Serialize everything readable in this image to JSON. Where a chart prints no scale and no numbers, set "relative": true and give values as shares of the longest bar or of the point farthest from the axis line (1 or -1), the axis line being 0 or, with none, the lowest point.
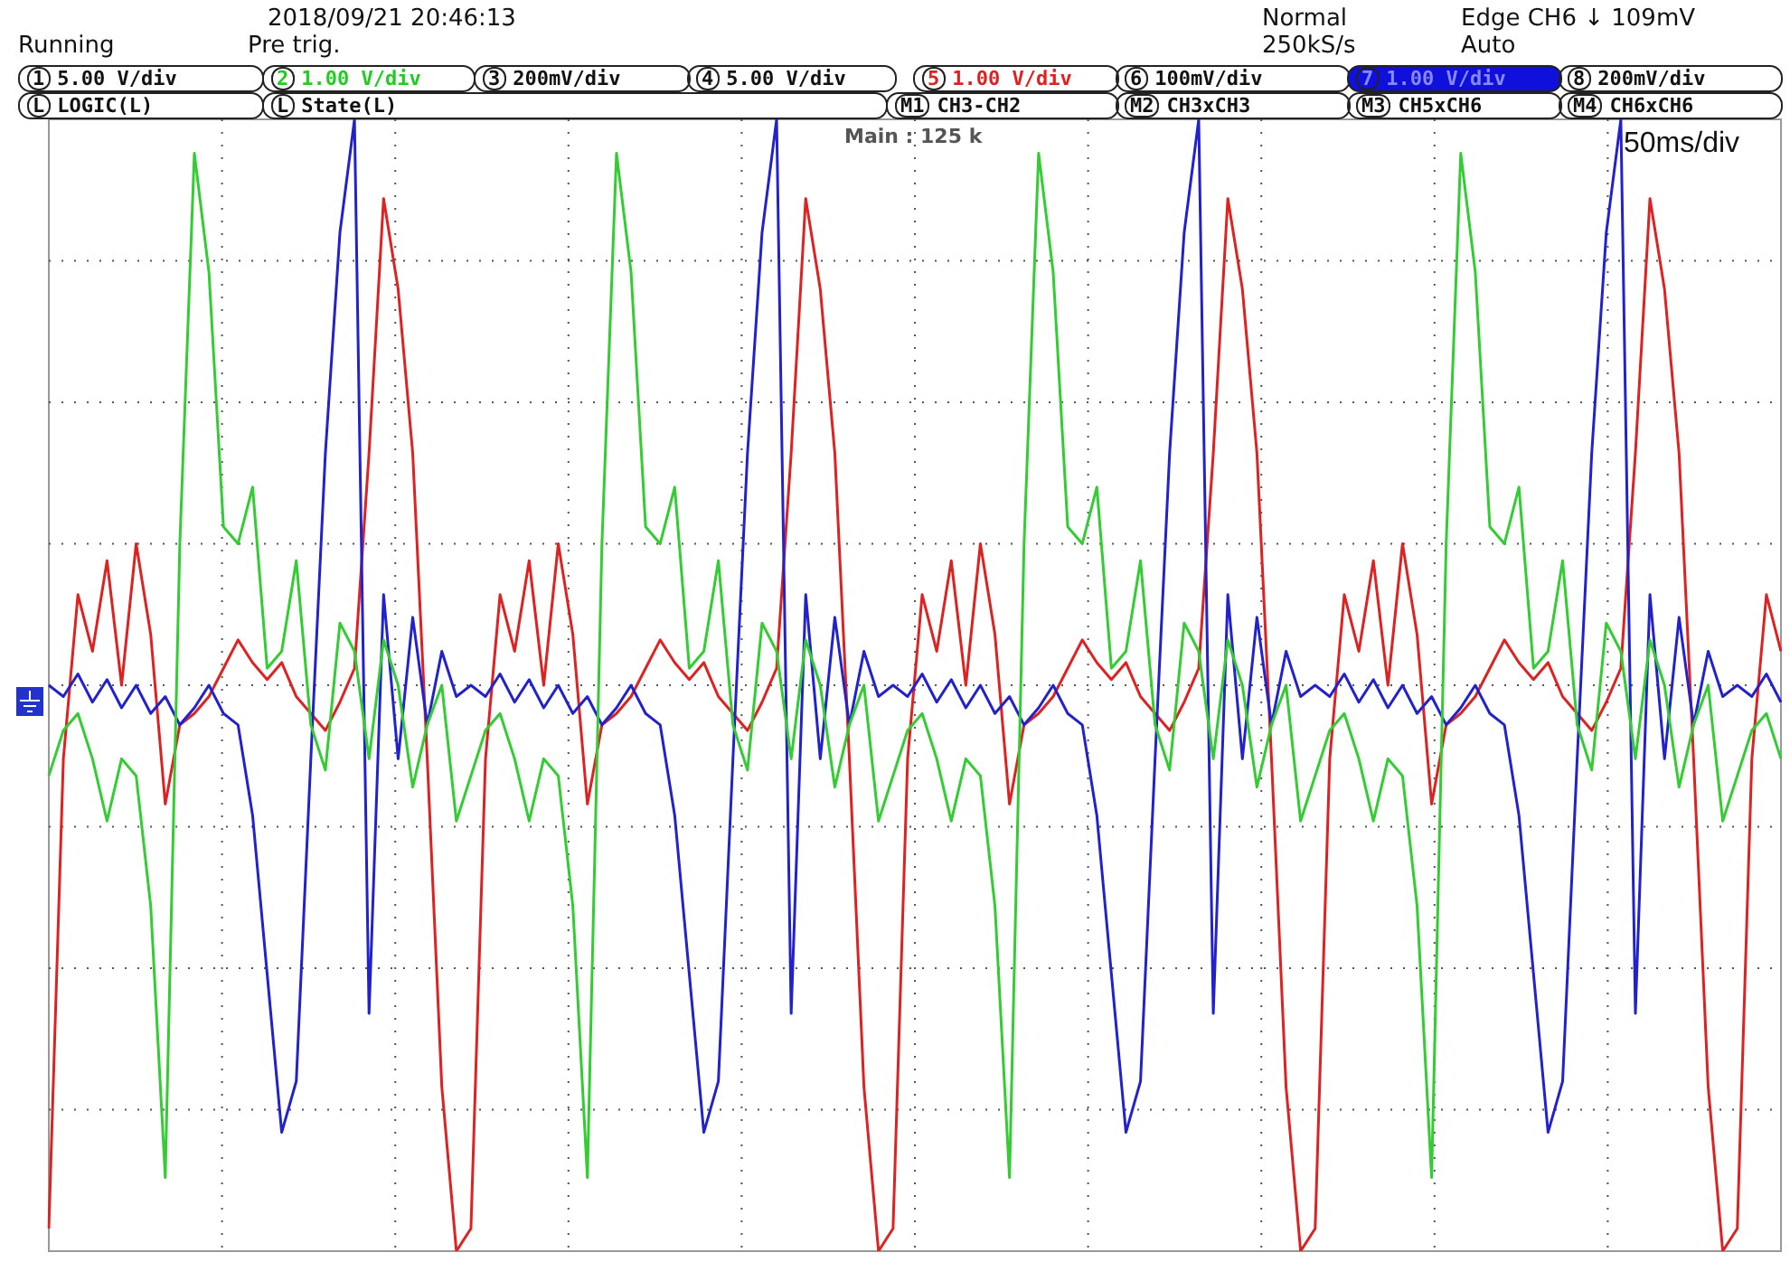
{
  "chart_data": {
    "type": "line",
    "relative": true,
    "grid": true,
    "categories": [
      null,
      null,
      null,
      null,
      null,
      null,
      null,
      null,
      null,
      null,
      null,
      null,
      null,
      null,
      null,
      null,
      null,
      null,
      null,
      null,
      null,
      null,
      null,
      null,
      null,
      null,
      null,
      null,
      null,
      null,
      null,
      null,
      null,
      null,
      null,
      null,
      null,
      null,
      null,
      null,
      null,
      null,
      null,
      null,
      null,
      null,
      null,
      null,
      null,
      null,
      null,
      null,
      null,
      null,
      null,
      null,
      null,
      null,
      null,
      null,
      null,
      null,
      null,
      null,
      null,
      null,
      null,
      null,
      null,
      null,
      null,
      null,
      null,
      null,
      null,
      null,
      null,
      null,
      null,
      null,
      null,
      null,
      null,
      null,
      null,
      null,
      null,
      null,
      null,
      null,
      null,
      null,
      null,
      null,
      null,
      null,
      null,
      null,
      null,
      null,
      null,
      null,
      null,
      null,
      null,
      null,
      null,
      null,
      null,
      null,
      null,
      null,
      null,
      null,
      null,
      null,
      null,
      null,
      null,
      null
    ],
    "series": [
      {
        "color": "#33cc33",
        "values": [
          -0.16,
          -0.08,
          -0.05,
          -0.13,
          -0.24,
          -0.13,
          -0.16,
          -0.39,
          -0.87,
          0.25,
          0.94,
          0.73,
          0.28,
          0.25,
          0.35,
          0.03,
          0.06,
          0.22,
          -0.07,
          -0.15,
          0.11,
          0.06,
          -0.13,
          0.08,
          0.0,
          -0.18,
          -0.07,
          0.0,
          -0.24,
          -0.16,
          -0.08,
          -0.05,
          -0.13,
          -0.24,
          -0.13,
          -0.16,
          -0.39,
          -0.87,
          0.25,
          0.94,
          0.73,
          0.28,
          0.25,
          0.35,
          0.03,
          0.06,
          0.22,
          -0.07,
          -0.15,
          0.11,
          0.06,
          -0.13,
          0.08,
          0.0,
          -0.18,
          -0.07,
          0.0,
          -0.24,
          -0.16,
          -0.08,
          -0.05,
          -0.13,
          -0.24,
          -0.13,
          -0.16,
          -0.39,
          -0.87,
          0.25,
          0.94,
          0.73,
          0.28,
          0.25,
          0.35,
          0.03,
          0.06,
          0.22,
          -0.07,
          -0.15,
          0.11,
          0.06,
          -0.13,
          0.08,
          0.0,
          -0.18,
          -0.07,
          0.0,
          -0.24,
          -0.16,
          -0.08,
          -0.05,
          -0.13,
          -0.24,
          -0.13,
          -0.16,
          -0.39,
          -0.87,
          0.25,
          0.94,
          0.73,
          0.28,
          0.25,
          0.35,
          0.03,
          0.06,
          0.22,
          -0.07,
          -0.15,
          0.11,
          0.06,
          -0.13,
          0.08,
          0.0,
          -0.18,
          -0.07,
          0.0,
          -0.24,
          -0.16,
          -0.08,
          -0.05,
          -0.13
        ]
      },
      {
        "color": "#2222cc",
        "values": [
          0.0,
          -0.02,
          0.02,
          -0.03,
          0.01,
          -0.04,
          0.0,
          -0.05,
          -0.02,
          -0.07,
          -0.04,
          0.0,
          -0.05,
          -0.07,
          -0.23,
          -0.51,
          -0.79,
          -0.7,
          -0.13,
          0.41,
          0.8,
          1.0,
          -0.58,
          0.16,
          -0.13,
          0.12,
          -0.07,
          0.06,
          -0.02,
          0.0,
          -0.02,
          0.02,
          -0.03,
          0.01,
          -0.04,
          0.0,
          -0.05,
          -0.02,
          -0.07,
          -0.04,
          0.0,
          -0.05,
          -0.07,
          -0.23,
          -0.51,
          -0.79,
          -0.7,
          -0.13,
          0.41,
          0.8,
          1.0,
          -0.58,
          0.16,
          -0.13,
          0.12,
          -0.07,
          0.06,
          -0.02,
          0.0,
          -0.02,
          0.02,
          -0.03,
          0.01,
          -0.04,
          0.0,
          -0.05,
          -0.02,
          -0.07,
          -0.04,
          0.0,
          -0.05,
          -0.07,
          -0.23,
          -0.51,
          -0.79,
          -0.7,
          -0.13,
          0.41,
          0.8,
          1.0,
          -0.58,
          0.16,
          -0.13,
          0.12,
          -0.07,
          0.06,
          -0.02,
          0.0,
          -0.02,
          0.02,
          -0.03,
          0.01,
          -0.04,
          0.0,
          -0.05,
          -0.02,
          -0.07,
          -0.04,
          0.0,
          -0.05,
          -0.07,
          -0.23,
          -0.51,
          -0.79,
          -0.7,
          -0.13,
          0.41,
          0.8,
          1.0,
          -0.58,
          0.16,
          -0.13,
          0.12,
          -0.07,
          0.06,
          -0.02,
          0.0,
          -0.02,
          0.02,
          -0.03
        ]
      },
      {
        "color": "#dd2222",
        "values": [
          -0.96,
          -0.13,
          0.16,
          0.06,
          0.22,
          0.0,
          0.25,
          0.09,
          -0.21,
          -0.07,
          -0.05,
          -0.02,
          0.03,
          0.08,
          0.04,
          0.01,
          0.04,
          -0.02,
          -0.05,
          -0.08,
          -0.03,
          0.03,
          0.41,
          0.86,
          0.7,
          0.41,
          -0.13,
          -0.71,
          -1.0,
          -0.96,
          -0.13,
          0.16,
          0.06,
          0.22,
          0.0,
          0.25,
          0.09,
          -0.21,
          -0.07,
          -0.05,
          -0.02,
          0.03,
          0.08,
          0.04,
          0.01,
          0.04,
          -0.02,
          -0.05,
          -0.08,
          -0.03,
          0.03,
          0.41,
          0.86,
          0.7,
          0.41,
          -0.13,
          -0.71,
          -1.0,
          -0.96,
          -0.13,
          0.16,
          0.06,
          0.22,
          0.0,
          0.25,
          0.09,
          -0.21,
          -0.07,
          -0.05,
          -0.02,
          0.03,
          0.08,
          0.04,
          0.01,
          0.04,
          -0.02,
          -0.05,
          -0.08,
          -0.03,
          0.03,
          0.41,
          0.86,
          0.7,
          0.41,
          -0.13,
          -0.71,
          -1.0,
          -0.96,
          -0.13,
          0.16,
          0.06,
          0.22,
          0.0,
          0.25,
          0.09,
          -0.21,
          -0.07,
          -0.05,
          -0.02,
          0.03,
          0.08,
          0.04,
          0.01,
          0.04,
          -0.02,
          -0.05,
          -0.08,
          -0.03,
          0.03,
          0.41,
          0.86,
          0.7,
          0.41,
          -0.13,
          -0.71,
          -1.0,
          -0.96,
          -0.13,
          0.16,
          0.06
        ]
      }
    ],
    "annotations": [
      "2018/09/21 20:46:13",
      "Running",
      "Pre trig.",
      "Normal",
      "250kS/s",
      "Edge CH6 ↓ 109mV",
      "Auto",
      "1 5.00 V/div",
      "2 1.00 V/div",
      "3 200mV/div",
      "4 5.00 V/div",
      "5 1.00 V/div",
      "6 100mV/div",
      "7 1.00 V/div",
      "8 200mV/div",
      "L LOGIC(L)",
      "L State(L)",
      "M1 CH3-CH2",
      "M2 CH3xCH3",
      "M3 CH5xCH6",
      "M4 CH6xCH6",
      "Main : 125 k",
      "50ms/div"
    ]
  }
}
